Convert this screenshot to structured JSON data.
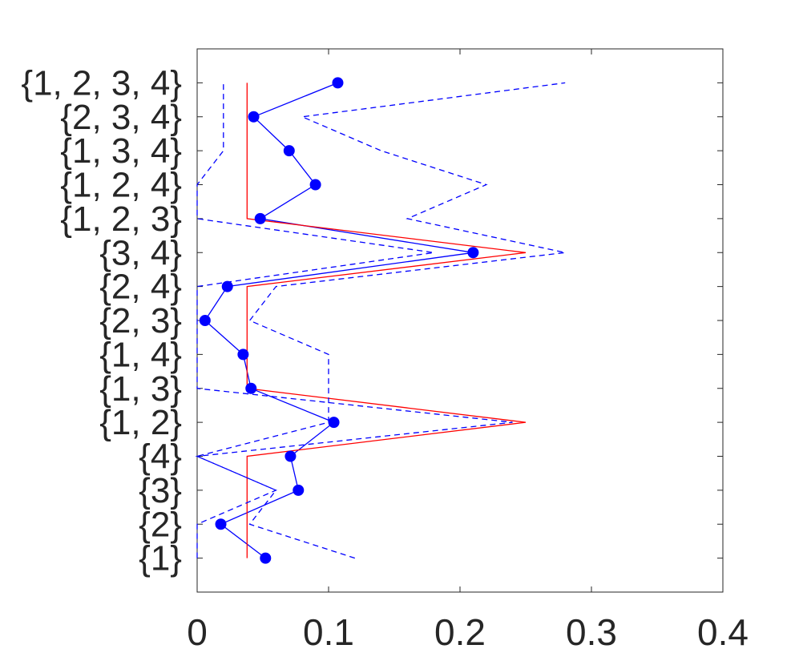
{
  "chart_data": {
    "type": "line",
    "categories": [
      "{1}",
      "{2}",
      "{3}",
      "{4}",
      "{1, 2}",
      "{1, 3}",
      "{1, 4}",
      "{2, 3}",
      "{2, 4}",
      "{3, 4}",
      "{1, 2, 3}",
      "{1, 2, 4}",
      "{1, 3, 4}",
      "{2, 3, 4}",
      "{1, 2, 3, 4}"
    ],
    "orientation": "horizontal",
    "xlim": [
      0,
      0.4
    ],
    "xticks": [
      "0",
      "0.1",
      "0.2",
      "0.3",
      "0.4"
    ],
    "ylim": [
      0,
      16
    ],
    "grid": false,
    "series": [
      {
        "style": "solid-with-markers",
        "color": "#0000ff",
        "values": [
          0.052,
          0.018,
          0.077,
          0.071,
          0.104,
          0.041,
          0.035,
          0.006,
          0.023,
          0.21,
          0.048,
          0.09,
          0.07,
          0.043,
          0.107
        ]
      },
      {
        "style": "solid",
        "color": "#ff0000",
        "values": [
          0.038,
          0.038,
          0.038,
          0.038,
          0.25,
          0.038,
          0.038,
          0.038,
          0.038,
          0.25,
          0.038,
          0.038,
          0.038,
          0.038,
          0.038
        ]
      },
      {
        "style": "dashed",
        "color": "#0000ff",
        "values": [
          0.12,
          0.04,
          0.06,
          0.0,
          0.1,
          0.1,
          0.1,
          0.04,
          0.06,
          0.28,
          0.16,
          0.22,
          0.14,
          0.08,
          0.28
        ]
      },
      {
        "style": "dashed",
        "color": "#0000ff",
        "values": [
          0.0,
          0.0,
          0.06,
          0.0,
          0.24,
          0.0,
          0.0,
          0.0,
          0.0,
          0.18,
          0.0,
          0.0,
          0.02,
          0.02,
          0.02
        ]
      }
    ]
  }
}
